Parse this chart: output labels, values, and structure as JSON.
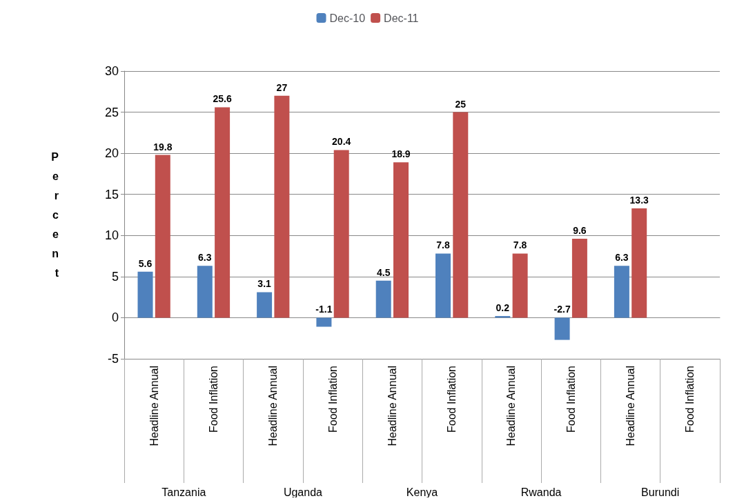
{
  "chart_data": {
    "type": "bar",
    "ylabel": "Percent",
    "categories": [
      "Headline Annual",
      "Food Inflation",
      "Headline Annual",
      "Food Inflation",
      "Headline Annual",
      "Food Inflation",
      "Headline Annual",
      "Food Inflation",
      "Headline Annual",
      "Food Inflation"
    ],
    "annotations": [
      "Tanzania",
      "Uganda",
      "Kenya",
      "Rwanda",
      "Burundi"
    ],
    "series": [
      {
        "name": "Dec-10",
        "color": "#4f81bd",
        "values": [
          5.6,
          6.3,
          3.1,
          -1.1,
          4.5,
          7.8,
          0.2,
          -2.7,
          6.3,
          null
        ]
      },
      {
        "name": "Dec-11",
        "color": "#c0504d",
        "values": [
          19.8,
          25.6,
          27,
          20.4,
          18.9,
          25,
          7.8,
          9.6,
          13.3,
          null
        ]
      }
    ],
    "ylim": [
      -5,
      30
    ],
    "yticks": [
      -5,
      0,
      5,
      10,
      15,
      20,
      25,
      30
    ],
    "grid": "y",
    "legend": "top",
    "data_labels": true
  }
}
